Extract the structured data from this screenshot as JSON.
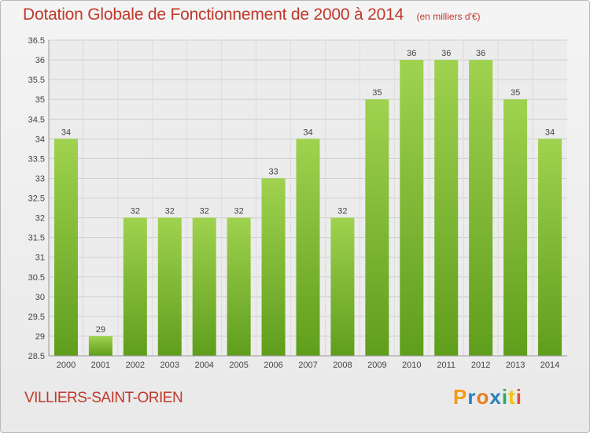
{
  "header": {
    "title": "Dotation Globale de Fonctionnement de 2000 à 2014",
    "subtitle": "(en milliers d'€)"
  },
  "footer": {
    "commune": "VILLIERS-SAINT-ORIEN",
    "logo_text": "Proxiti",
    "logo_colors": [
      "#f39c12",
      "#2980b9",
      "#e67e22",
      "#2980b9",
      "#27ae60",
      "#f1c40f",
      "#e74c3c"
    ]
  },
  "chart_data": {
    "type": "bar",
    "title": "Dotation Globale de Fonctionnement de 2000 à 2014",
    "subtitle": "(en milliers d'€)",
    "xlabel": "",
    "ylabel": "",
    "categories": [
      "2000",
      "2001",
      "2002",
      "2003",
      "2004",
      "2005",
      "2006",
      "2007",
      "2008",
      "2009",
      "2010",
      "2011",
      "2012",
      "2013",
      "2014"
    ],
    "values": [
      34,
      29,
      32,
      32,
      32,
      32,
      33,
      34,
      32,
      35,
      36,
      36,
      36,
      35,
      34
    ],
    "ylim": [
      28.5,
      36.5
    ],
    "yticks": [
      "28.5",
      "29",
      "29.5",
      "30",
      "30.5",
      "31",
      "31.5",
      "32",
      "32.5",
      "33",
      "33.5",
      "34",
      "34.5",
      "35",
      "35.5",
      "36",
      "36.5"
    ],
    "grid": true,
    "bar_color_top": "#9fd24f",
    "bar_color_bottom": "#5f9e1c"
  }
}
